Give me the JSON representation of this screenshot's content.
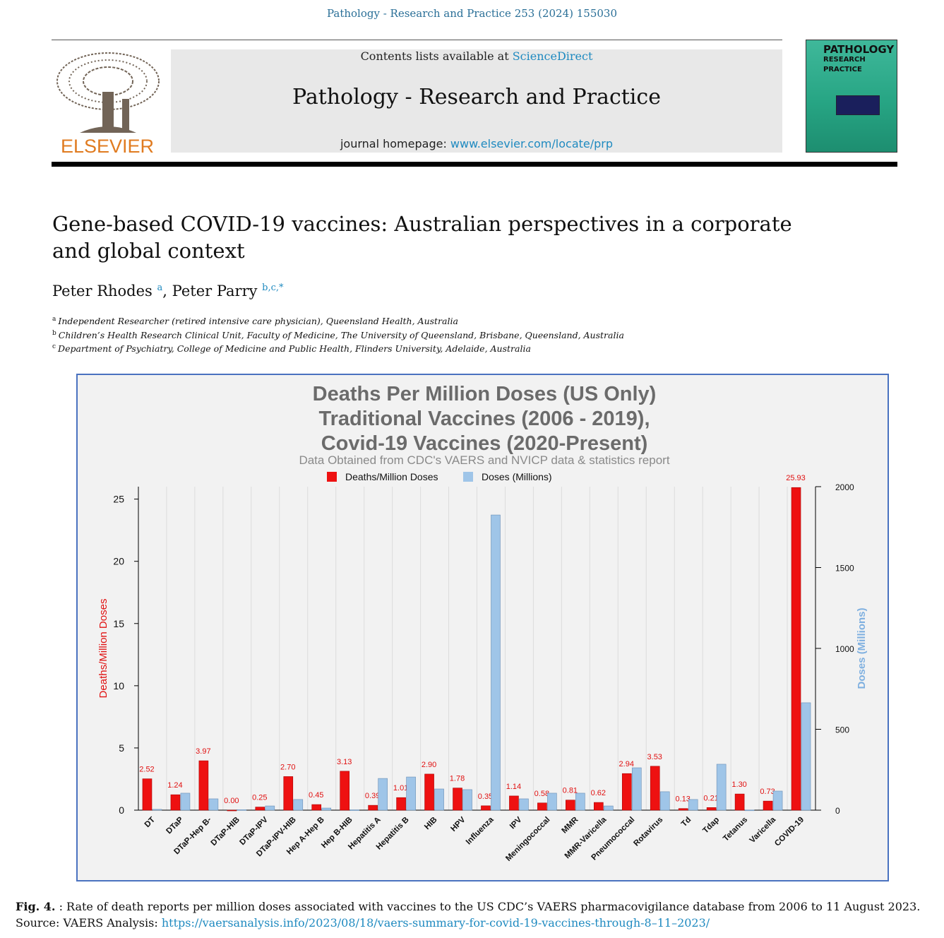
{
  "header": {
    "citation": "Pathology - Research and Practice 253 (2024) 155030",
    "contents_prefix": "Contents lists available at",
    "contents_link": "ScienceDirect",
    "journal": "Pathology - Research and Practice",
    "homepage_prefix": "journal homepage:",
    "homepage_link": "www.elsevier.com/locate/prp",
    "publisher": "ELSEVIER",
    "cover_lines": [
      "PATHOLOGY",
      "RESEARCH",
      "PRACTICE"
    ]
  },
  "article": {
    "title": "Gene-based COVID-19 vaccines: Australian perspectives in a corporate and global context",
    "authors": [
      {
        "name": "Peter Rhodes",
        "affil": "a"
      },
      {
        "name": "Peter Parry",
        "affil": "b,c,*"
      }
    ],
    "affiliations": [
      {
        "mark": "a",
        "text": "Independent Researcher (retired intensive care physician), Queensland Health, Australia"
      },
      {
        "mark": "b",
        "text": "Children’s Health Research Clinical Unit, Faculty of Medicine, The University of Queensland, Brisbane, Queensland, Australia"
      },
      {
        "mark": "c",
        "text": "Department of Psychiatry, College of Medicine and Public Health, Flinders University, Adelaide, Australia"
      }
    ]
  },
  "chart_data": {
    "type": "bar",
    "title": [
      "Deaths Per Million Doses (US Only)",
      "Traditional Vaccines (2006 - 2019),",
      "Covid-19 Vaccines (2020-Present)"
    ],
    "subtitle": "Data Obtained from CDC's VAERS and NVICP data & statistics report",
    "y_label": "Deaths/Million Doses",
    "y2_label": "Doses (Millions)",
    "categories": [
      "DT",
      "DTaP",
      "DTaP-Hep B-",
      "DTaP-HIB",
      "DTaP-IPV",
      "DTaP-IPV-HIB",
      "Hep A-Hep B",
      "Hep B-HIB",
      "Hepatitis A",
      "Hepatitis B",
      "HIB",
      "HPV",
      "Influenza",
      "IPV",
      "Meningococcal",
      "MMR",
      "MMR-Varicella",
      "Pneumococcal",
      "Rotavirus",
      "Td",
      "Tdap",
      "Tetanus",
      "Varicella",
      "COVID-19"
    ],
    "series": [
      {
        "name": "Deaths/Million Doses",
        "color": "#ee1111",
        "values": [
          2.52,
          1.24,
          3.97,
          0.0,
          0.25,
          2.7,
          0.45,
          3.13,
          0.39,
          1.01,
          2.9,
          1.78,
          0.35,
          1.14,
          0.58,
          0.81,
          0.62,
          2.94,
          3.53,
          0.13,
          0.21,
          1.3,
          0.73,
          25.93
        ],
        "value_labels": [
          "2.52",
          "1.24",
          "3.97",
          "0.00",
          "0.25",
          "2.70",
          "0.45",
          "3.13",
          "0.39",
          "1.01",
          "2.90",
          "1.78",
          "0.35",
          "1.14",
          "0.58",
          "0.81",
          "0.62",
          "2.94",
          "3.53",
          "0.13",
          "0.21",
          "1.30",
          "0.73",
          "25.93"
        ]
      },
      {
        "name": "Doses (Millions)",
        "color": "#9fc5e8",
        "axis": "y2",
        "values": [
          5,
          105,
          70,
          3,
          26,
          66,
          13,
          2,
          196,
          205,
          131,
          127,
          1825,
          70,
          105,
          105,
          26,
          262,
          114,
          66,
          284,
          1,
          118,
          664
        ]
      }
    ],
    "ylim": [
      0,
      26
    ],
    "yticks": [
      0,
      5,
      10,
      15,
      20,
      25
    ],
    "y2lim": [
      0,
      2000
    ],
    "y2ticks": [
      0,
      500,
      1000,
      1500,
      2000
    ],
    "legend": "top"
  },
  "caption": {
    "label": "Fig. 4.",
    "text": ": Rate of death reports per million doses associated with vaccines to the US CDC’s VAERS pharmacovigilance database from 2006 to 11 August 2023.",
    "source_prefix": "Source: VAERS Analysis:",
    "source_link": "https://vaersanalysis.info/2023/08/18/vaers-summary-for-covid-19-vaccines-through-8–11–2023/"
  }
}
